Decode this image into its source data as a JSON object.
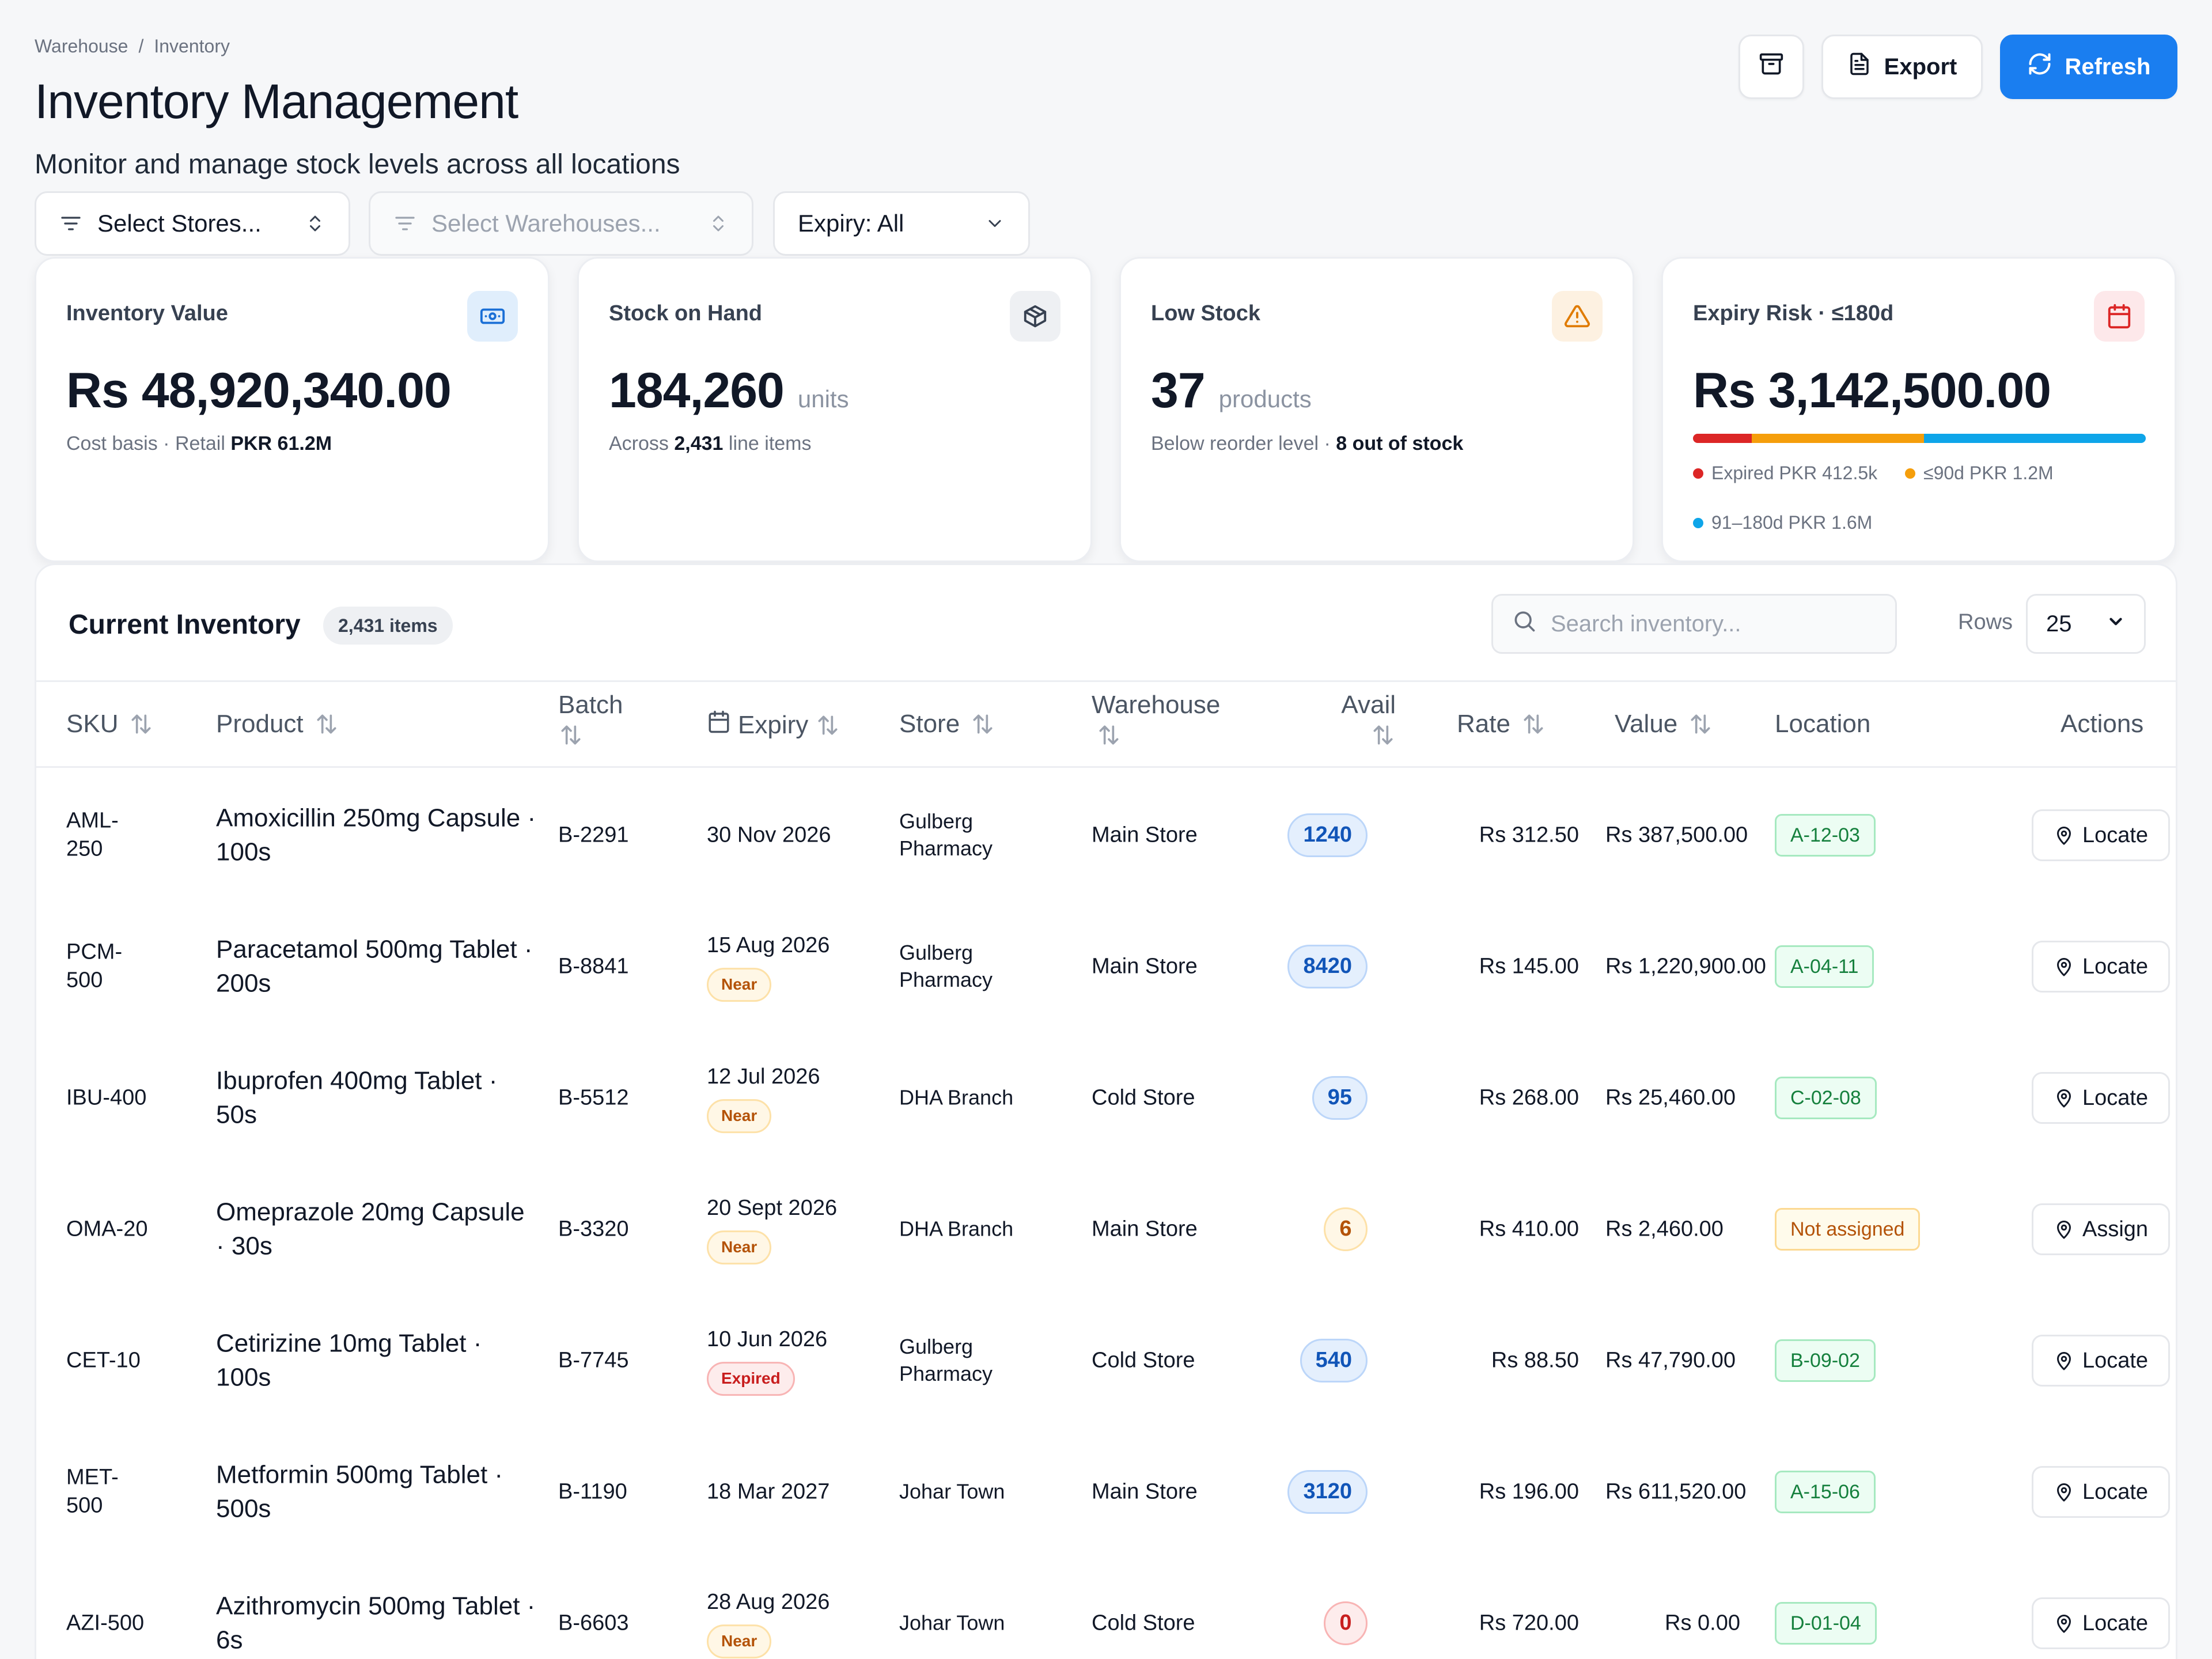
{
  "breadcrumb": {
    "items": [
      "Warehouse",
      "Inventory"
    ],
    "separator": "/"
  },
  "header": {
    "title": "Inventory Management",
    "subtitle": "Monitor and manage stock levels across all locations",
    "export_label": "Export",
    "refresh_label": "Refresh"
  },
  "filters": {
    "stores": "Select Stores...",
    "warehouses": "Select Warehouses...",
    "expiry": "Expiry: All"
  },
  "kpis": {
    "inventory_value": {
      "label": "Inventory Value",
      "value": "Rs 48,920,340.00",
      "sub_prefix": "Cost basis · Retail ",
      "sub_strong": "PKR 61.2M"
    },
    "stock_on_hand": {
      "label": "Stock on Hand",
      "value": "184,260",
      "unit": "units",
      "sub_prefix": "Across ",
      "sub_strong": "2,431",
      "sub_suffix": " line items"
    },
    "low_stock": {
      "label": "Low Stock",
      "value": "37",
      "unit": "products",
      "sub_prefix": "Below reorder level · ",
      "sub_strong": "8 out of stock"
    },
    "expiry_risk": {
      "label": "Expiry Risk · ≤180d",
      "value": "Rs 3,142,500.00",
      "segments": [
        {
          "name": "Expired PKR 412.5k",
          "share": 0.13,
          "color": "#dc2626"
        },
        {
          "name": "≤90d PKR 1.2M",
          "share": 0.38,
          "color": "#f59e0b"
        },
        {
          "name": "91–180d PKR 1.6M",
          "share": 0.49,
          "color": "#0ea5e9"
        }
      ]
    }
  },
  "table": {
    "title": "Current Inventory",
    "count": "2,431 items",
    "search_placeholder": "Search inventory...",
    "rows_label": "Rows",
    "rows_value": "25",
    "columns": {
      "sku": "SKU",
      "product": "Product",
      "batch": "Batch",
      "expiry": "Expiry",
      "store": "Store",
      "warehouse": "Warehouse",
      "avail": "Avail",
      "rate": "Rate",
      "value": "Value",
      "location": "Location",
      "actions": "Actions"
    },
    "rows": [
      {
        "sku": "AML-250",
        "product": "Amoxicillin 250mg Capsule · 100s",
        "batch": "B-2291",
        "expiry": "30 Nov 2026",
        "status": "",
        "store": "Gulberg Pharmacy",
        "warehouse": "Main Store",
        "avail": "1240",
        "avail_level": "blue",
        "rate": "Rs 312.50",
        "value": "Rs 387,500.00",
        "location": "A-12-03",
        "location_state": "green",
        "action": "Locate"
      },
      {
        "sku": "PCM-500",
        "product": "Paracetamol 500mg Tablet · 200s",
        "batch": "B-8841",
        "expiry": "15 Aug 2026",
        "status": "Near",
        "store": "Gulberg Pharmacy",
        "warehouse": "Main Store",
        "avail": "8420",
        "avail_level": "blue",
        "rate": "Rs 145.00",
        "value": "Rs 1,220,900.00",
        "location": "A-04-11",
        "location_state": "green",
        "action": "Locate"
      },
      {
        "sku": "IBU-400",
        "product": "Ibuprofen 400mg Tablet · 50s",
        "batch": "B-5512",
        "expiry": "12 Jul 2026",
        "status": "Near",
        "store": "DHA Branch",
        "warehouse": "Cold Store",
        "avail": "95",
        "avail_level": "blue",
        "rate": "Rs 268.00",
        "value": "Rs 25,460.00",
        "location": "C-02-08",
        "location_state": "green",
        "action": "Locate"
      },
      {
        "sku": "OMA-20",
        "product": "Omeprazole 20mg Capsule · 30s",
        "batch": "B-3320",
        "expiry": "20 Sept 2026",
        "status": "Near",
        "store": "DHA Branch",
        "warehouse": "Main Store",
        "avail": "6",
        "avail_level": "amber",
        "rate": "Rs 410.00",
        "value": "Rs 2,460.00",
        "location": "Not assigned",
        "location_state": "amber",
        "action": "Assign"
      },
      {
        "sku": "CET-10",
        "product": "Cetirizine 10mg Tablet · 100s",
        "batch": "B-7745",
        "expiry": "10 Jun 2026",
        "status": "Expired",
        "store": "Gulberg Pharmacy",
        "warehouse": "Cold Store",
        "avail": "540",
        "avail_level": "blue",
        "rate": "Rs 88.50",
        "value": "Rs 47,790.00",
        "location": "B-09-02",
        "location_state": "green",
        "action": "Locate"
      },
      {
        "sku": "MET-500",
        "product": "Metformin 500mg Tablet · 500s",
        "batch": "B-1190",
        "expiry": "18 Mar 2027",
        "status": "",
        "store": "Johar Town",
        "warehouse": "Main Store",
        "avail": "3120",
        "avail_level": "blue",
        "rate": "Rs 196.00",
        "value": "Rs 611,520.00",
        "location": "A-15-06",
        "location_state": "green",
        "action": "Locate"
      },
      {
        "sku": "AZI-500",
        "product": "Azithromycin 500mg Tablet · 6s",
        "batch": "B-6603",
        "expiry": "28 Aug 2026",
        "status": "Near",
        "store": "Johar Town",
        "warehouse": "Cold Store",
        "avail": "0",
        "avail_level": "red",
        "rate": "Rs 720.00",
        "value": "Rs 0.00",
        "location": "D-01-04",
        "location_state": "green",
        "action": "Locate"
      }
    ]
  },
  "icons": {
    "archive": "archive-icon",
    "export": "file-text-icon",
    "refresh": "refresh-icon",
    "filter": "filter-icon",
    "chevron": "chevron-down-icon",
    "updown": "chevron-updown-icon",
    "money": "banknote-icon",
    "box": "package-icon",
    "warning": "alert-triangle-icon",
    "calendar": "calendar-icon",
    "search": "search-icon",
    "pin": "map-pin-icon",
    "sort": "sort-arrows-icon"
  },
  "colors": {
    "accent": "#1a7ef0"
  }
}
